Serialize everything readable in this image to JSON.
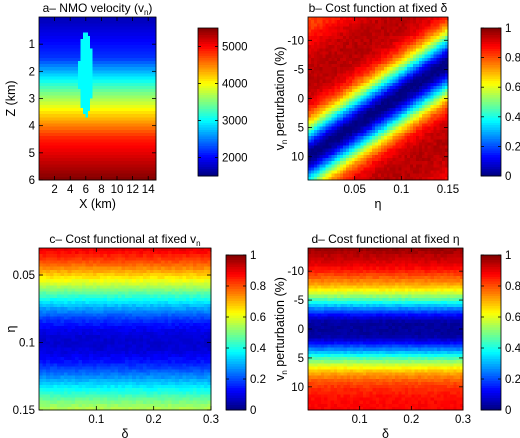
{
  "chart_data": [
    {
      "type": "heatmap",
      "panel": "a",
      "title_prefix": "a– NMO velocity (v",
      "title_sub": "n",
      "title_suffix": ")",
      "xlabel": "X (km)",
      "ylabel": "Z (km)",
      "xlim": [
        0,
        15
      ],
      "ylim": [
        0,
        6
      ],
      "y_reversed": true,
      "xticks": [
        "2",
        "4",
        "6",
        "8",
        "10",
        "12",
        "14"
      ],
      "xtick_values": [
        2,
        4,
        6,
        8,
        10,
        12,
        14
      ],
      "yticks": [
        "1",
        "2",
        "3",
        "4",
        "5",
        "6"
      ],
      "ytick_values": [
        1,
        2,
        3,
        4,
        5,
        6
      ],
      "velocity_profile": {
        "z": [
          0,
          1.5,
          2.5,
          3.5,
          4.5,
          6
        ],
        "v": [
          1700,
          2200,
          3200,
          4100,
          4900,
          5500
        ]
      },
      "anomaly": {
        "center_x": 6,
        "center_z": 2.1,
        "half_width": 0.9,
        "half_height": 1.55,
        "value": 3000
      },
      "colorbar": {
        "min": 1500,
        "max": 5500,
        "ticks": [
          "2000",
          "3000",
          "4000",
          "5000"
        ],
        "tick_values": [
          2000,
          3000,
          4000,
          5000
        ]
      }
    },
    {
      "type": "heatmap",
      "panel": "b",
      "title": "b– Cost function at fixed δ",
      "xlabel": "η",
      "ylabel_main": "v",
      "ylabel_sub": "n",
      "ylabel_rest": " perturbation (%)",
      "xlim": [
        0,
        0.15
      ],
      "ylim": [
        -14,
        14
      ],
      "y_reversed": false,
      "xticks": [
        "0.05",
        "0.1",
        "0.15"
      ],
      "xtick_values": [
        0.05,
        0.1,
        0.15
      ],
      "yticks": [
        "-10",
        "-5",
        "0",
        "5",
        "10"
      ],
      "ytick_values": [
        -10,
        -5,
        0,
        5,
        10
      ],
      "valley": {
        "y_at_xmin": 10,
        "y_at_xmax": -6,
        "width": 5.5
      },
      "colorbar": {
        "min": 0,
        "max": 1,
        "ticks": [
          "0",
          "0.2",
          "0.4",
          "0.6",
          "0.8",
          "1"
        ],
        "tick_values": [
          0,
          0.2,
          0.4,
          0.6,
          0.8,
          1
        ]
      }
    },
    {
      "type": "heatmap",
      "panel": "c",
      "title_prefix": "c– Cost functional at fixed v",
      "title_sub": "n",
      "title_suffix": "",
      "xlabel": "δ",
      "ylabel": "η",
      "xlim": [
        0,
        0.3
      ],
      "ylim": [
        0.03,
        0.15
      ],
      "y_reversed": true,
      "xticks": [
        "0.1",
        "0.2",
        "0.3"
      ],
      "xtick_values": [
        0.1,
        0.2,
        0.3
      ],
      "yticks": [
        "0.05",
        "0.1",
        "0.15"
      ],
      "ytick_values": [
        0.05,
        0.1,
        0.15
      ],
      "minimum": {
        "eta": 0.1,
        "width": 0.045
      },
      "colorbar": {
        "min": 0,
        "max": 1,
        "ticks": [
          "0",
          "0.2",
          "0.4",
          "0.6",
          "0.8",
          "1"
        ],
        "tick_values": [
          0,
          0.2,
          0.4,
          0.6,
          0.8,
          1
        ]
      }
    },
    {
      "type": "heatmap",
      "panel": "d",
      "title": "d– Cost functional at fixed η",
      "xlabel": "δ",
      "ylabel_main": "v",
      "ylabel_sub": "n",
      "ylabel_rest": " perturbation (%)",
      "xlim": [
        0,
        0.3
      ],
      "ylim": [
        -14,
        14
      ],
      "y_reversed": false,
      "xticks": [
        "0.1",
        "0.2",
        "0.3"
      ],
      "xtick_values": [
        0.1,
        0.2,
        0.3
      ],
      "yticks": [
        "-10",
        "-5",
        "0",
        "5",
        "10"
      ],
      "ytick_values": [
        -10,
        -5,
        0,
        5,
        10
      ],
      "minimum": {
        "y": 0,
        "width": 6
      },
      "colorbar": {
        "min": 0,
        "max": 1,
        "ticks": [
          "0",
          "0.2",
          "0.4",
          "0.6",
          "0.8",
          "1"
        ],
        "tick_values": [
          0,
          0.2,
          0.4,
          0.6,
          0.8,
          1
        ]
      }
    }
  ]
}
